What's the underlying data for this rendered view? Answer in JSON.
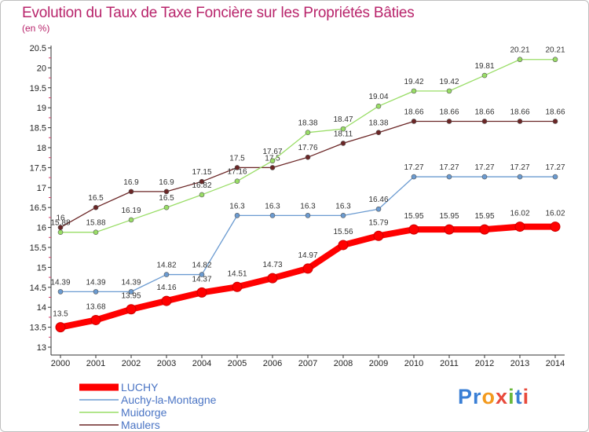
{
  "title": "Evolution du Taux de Taxe Foncière sur les Propriétés Bâties",
  "subtitle": "(en %)",
  "logo": "Proxiti",
  "chart_data": {
    "type": "line",
    "x": [
      2000,
      2001,
      2002,
      2003,
      2004,
      2005,
      2006,
      2007,
      2008,
      2009,
      2010,
      2011,
      2012,
      2013,
      2014
    ],
    "ylim": [
      13,
      20.5
    ],
    "yticks": [
      13,
      13.5,
      14,
      14.5,
      15,
      15.5,
      16,
      16.5,
      17,
      17.5,
      18,
      18.5,
      19,
      19.5,
      20,
      20.5
    ],
    "grid": false,
    "legend": "bottom-left",
    "series": [
      {
        "name": "LUCHY",
        "color": "#ff0000",
        "values": [
          13.5,
          13.68,
          13.95,
          14.16,
          14.37,
          14.51,
          14.73,
          14.97,
          15.56,
          15.79,
          15.95,
          15.95,
          15.95,
          16.02,
          16.02
        ]
      },
      {
        "name": "Auchy-la-Montagne",
        "color": "#6b9bd1",
        "values": [
          14.39,
          14.39,
          14.39,
          14.82,
          14.82,
          16.3,
          16.3,
          16.3,
          16.3,
          16.46,
          17.27,
          17.27,
          17.27,
          17.27,
          17.27
        ]
      },
      {
        "name": "Muidorge",
        "color": "#99dd66",
        "values": [
          15.88,
          15.88,
          16.19,
          16.5,
          16.82,
          17.16,
          17.67,
          18.38,
          18.47,
          19.04,
          19.42,
          19.42,
          19.81,
          20.21,
          20.21
        ]
      },
      {
        "name": "Maulers",
        "color": "#6b2626",
        "values": [
          16,
          16.5,
          16.9,
          16.9,
          17.15,
          17.5,
          17.5,
          17.76,
          18.11,
          18.38,
          18.66,
          18.66,
          18.66,
          18.66,
          18.66
        ]
      }
    ]
  }
}
